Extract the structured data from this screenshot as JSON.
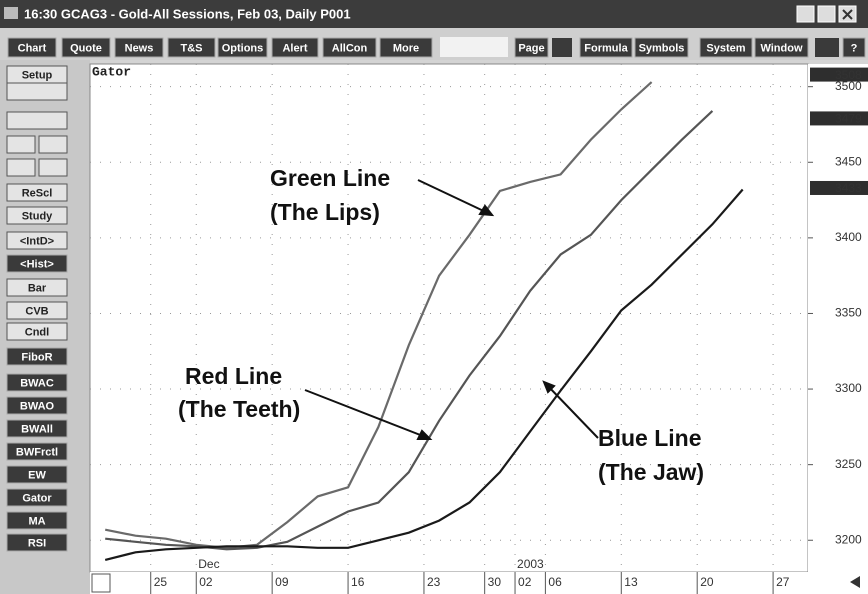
{
  "title_bar": "16:30  GCAG3 - Gold-All Sessions, Feb 03, Daily  P001",
  "menu": [
    "Chart",
    "Quote",
    "News",
    "T&S",
    "Options",
    "Alert",
    "AllCon",
    "More"
  ],
  "right_menu": [
    "Page",
    "Formula",
    "Symbols",
    "System",
    "Window",
    "?"
  ],
  "side_buttons": [
    "Setup",
    "ReScl",
    "Study",
    "<IntD>",
    "<Hist>",
    "Bar",
    "CVB",
    "Cndl",
    "FiboR",
    "BWAC",
    "BWAO",
    "BWAll",
    "BWFrctl",
    "EW",
    "Gator",
    "MA",
    "RSI"
  ],
  "chart": {
    "type": "line",
    "label": "Gator",
    "x": [
      -3,
      -1,
      1,
      3,
      5,
      7,
      9,
      11,
      13,
      15,
      17,
      19,
      21,
      23,
      25,
      27,
      29,
      31,
      33,
      35,
      37,
      39
    ],
    "series": [
      {
        "color": "#6a6a6a",
        "values": [
          3207,
          3203,
          3201,
          3197,
          3195,
          3197,
          3212,
          3229,
          3235,
          3275,
          3329,
          3375,
          3402,
          3431,
          3437,
          3442,
          3465,
          3485,
          3503,
          null,
          null,
          null
        ]
      },
      {
        "color": "#555555",
        "values": [
          3201,
          3199,
          3197,
          3196,
          3194,
          3195,
          3199,
          3209,
          3219,
          3225,
          3245,
          3279,
          3309,
          3335,
          3365,
          3389,
          3402,
          3425,
          3445,
          3465,
          3484,
          null
        ]
      },
      {
        "color": "#1a1a1a",
        "values": [
          3187,
          3192,
          3194,
          3195,
          3196,
          3196,
          3196,
          3195,
          3195,
          3200,
          3205,
          3213,
          3225,
          3245,
          3272,
          3299,
          3325,
          3352,
          3369,
          3389,
          3409,
          3432
        ]
      }
    ],
    "xlim": [
      -4,
      43.3
    ],
    "ylim": [
      3179,
      3515
    ],
    "yticks": [
      3200,
      3250,
      3300,
      3350,
      3400,
      3450,
      3500
    ],
    "xticks": [
      {
        "value": 0,
        "label": "25"
      },
      {
        "value": 3,
        "label": "02"
      },
      {
        "value": 8,
        "label": "09"
      },
      {
        "value": 13,
        "label": "16"
      },
      {
        "value": 18,
        "label": "23"
      },
      {
        "value": 22,
        "label": "30"
      },
      {
        "value": 24,
        "label": "02"
      },
      {
        "value": 26,
        "label": "06"
      },
      {
        "value": 31,
        "label": "13"
      },
      {
        "value": 36,
        "label": "20"
      },
      {
        "value": 41,
        "label": "27"
      }
    ],
    "period_labels": [
      {
        "value": 3,
        "label": "Dec"
      },
      {
        "value": 24,
        "label": "2003"
      }
    ],
    "price_flags": [
      3508,
      3479,
      3433
    ],
    "grid": true,
    "annotations": [
      {
        "line1": "Green Line",
        "line2": "(The Lips)"
      },
      {
        "line1": "Red Line",
        "line2": "(The Teeth)"
      },
      {
        "line1": "Blue Line",
        "line2": "(The Jaw)"
      }
    ]
  }
}
